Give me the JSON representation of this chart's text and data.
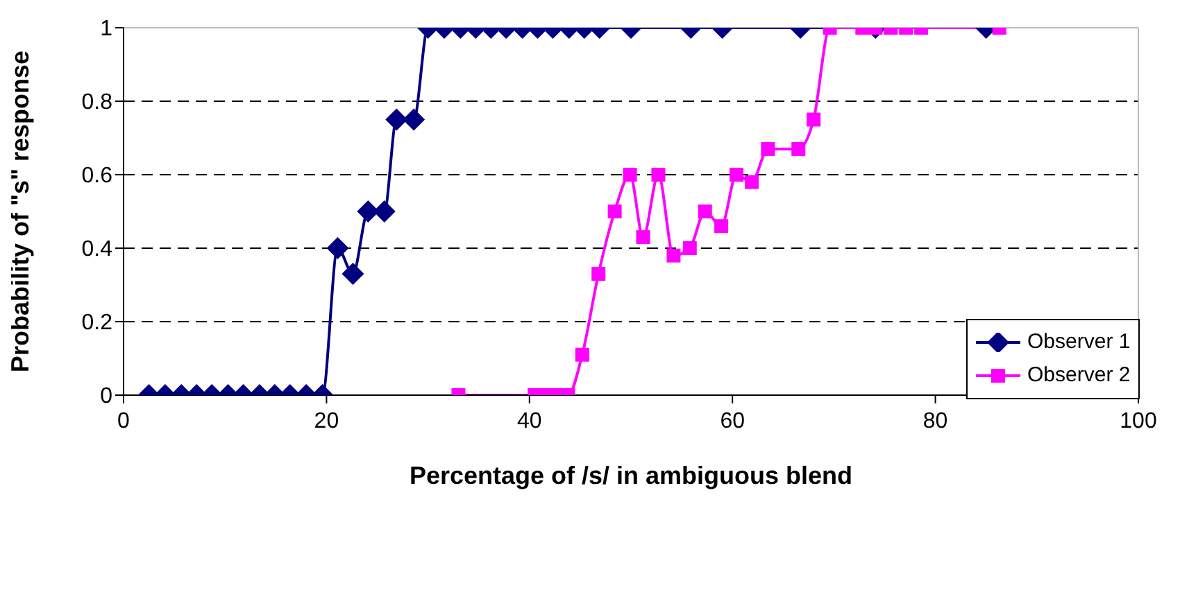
{
  "chart_data": {
    "type": "line",
    "xlabel": "Percentage of /s/ in ambiguous blend",
    "ylabel": "Probability of \"s\" response",
    "xlim": [
      0,
      100
    ],
    "xticks": [
      0,
      20,
      40,
      60,
      80,
      100
    ],
    "ylim": [
      0,
      1
    ],
    "yticks": [
      0,
      0.2,
      0.4,
      0.6,
      0.8,
      1
    ],
    "grid": "y",
    "legend": "right",
    "line_style": "solid",
    "series": [
      {
        "name": "Observer 1",
        "color": "#000080",
        "marker": "diamond",
        "x": [
          2.5,
          4.1,
          5.7,
          7.2,
          8.7,
          10.3,
          11.8,
          13.4,
          14.9,
          16.4,
          18.0,
          19.6,
          21.1,
          22.6,
          24.1,
          25.7,
          26.9,
          28.6,
          30.0,
          31.6,
          33.2,
          34.7,
          36.2,
          37.7,
          39.3,
          40.8,
          42.3,
          43.9,
          45.4,
          46.9,
          50.0,
          55.9,
          59.0,
          66.7,
          74.1,
          85.0
        ],
        "values": [
          0,
          0,
          0,
          0,
          0,
          0,
          0,
          0,
          0,
          0,
          0,
          0,
          0.4,
          0.33,
          0.5,
          0.5,
          0.75,
          0.75,
          1,
          1,
          1,
          1,
          1,
          1,
          1,
          1,
          1,
          1,
          1,
          1,
          1,
          1,
          1,
          1,
          1,
          1
        ]
      },
      {
        "name": "Observer 2",
        "color": "#ff00ff",
        "marker": "square",
        "x": [
          33.0,
          40.5,
          41.5,
          42.6,
          43.8,
          45.2,
          46.8,
          48.4,
          49.9,
          51.2,
          52.7,
          54.2,
          55.8,
          57.3,
          58.9,
          60.4,
          61.9,
          63.5,
          66.5,
          68.0,
          69.6,
          72.8,
          74.1,
          75.6,
          77.1,
          78.6,
          86.3
        ],
        "values": [
          0,
          0,
          0,
          0,
          0,
          0.11,
          0.33,
          0.5,
          0.6,
          0.43,
          0.6,
          0.38,
          0.4,
          0.5,
          0.46,
          0.6,
          0.58,
          0.67,
          0.67,
          0.75,
          1,
          1,
          1,
          1,
          1,
          1,
          1
        ]
      }
    ]
  }
}
